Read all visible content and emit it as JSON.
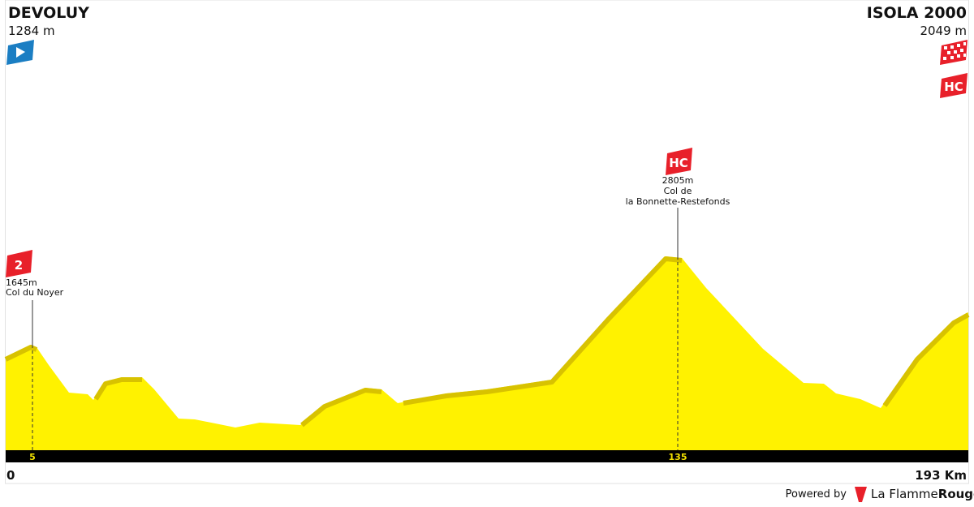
{
  "start": {
    "name": "DEVOLUY",
    "elevation": "1284 m"
  },
  "finish": {
    "name": "ISOLA 2000",
    "elevation": "2049 m",
    "category": "HC"
  },
  "climbs": [
    {
      "category": "2",
      "altitude": "1645m",
      "name_lines": [
        "Col du Noyer"
      ],
      "km": "5"
    },
    {
      "category": "HC",
      "altitude": "2805m",
      "name_lines": [
        "Col de",
        "la Bonnette-Restefonds"
      ],
      "km": "135"
    }
  ],
  "distance": {
    "start": "0",
    "end": "193 Km"
  },
  "footer": {
    "powered_by": "Powered by",
    "brand_light": "La Flamme",
    "brand_bold": "Rouge"
  }
}
